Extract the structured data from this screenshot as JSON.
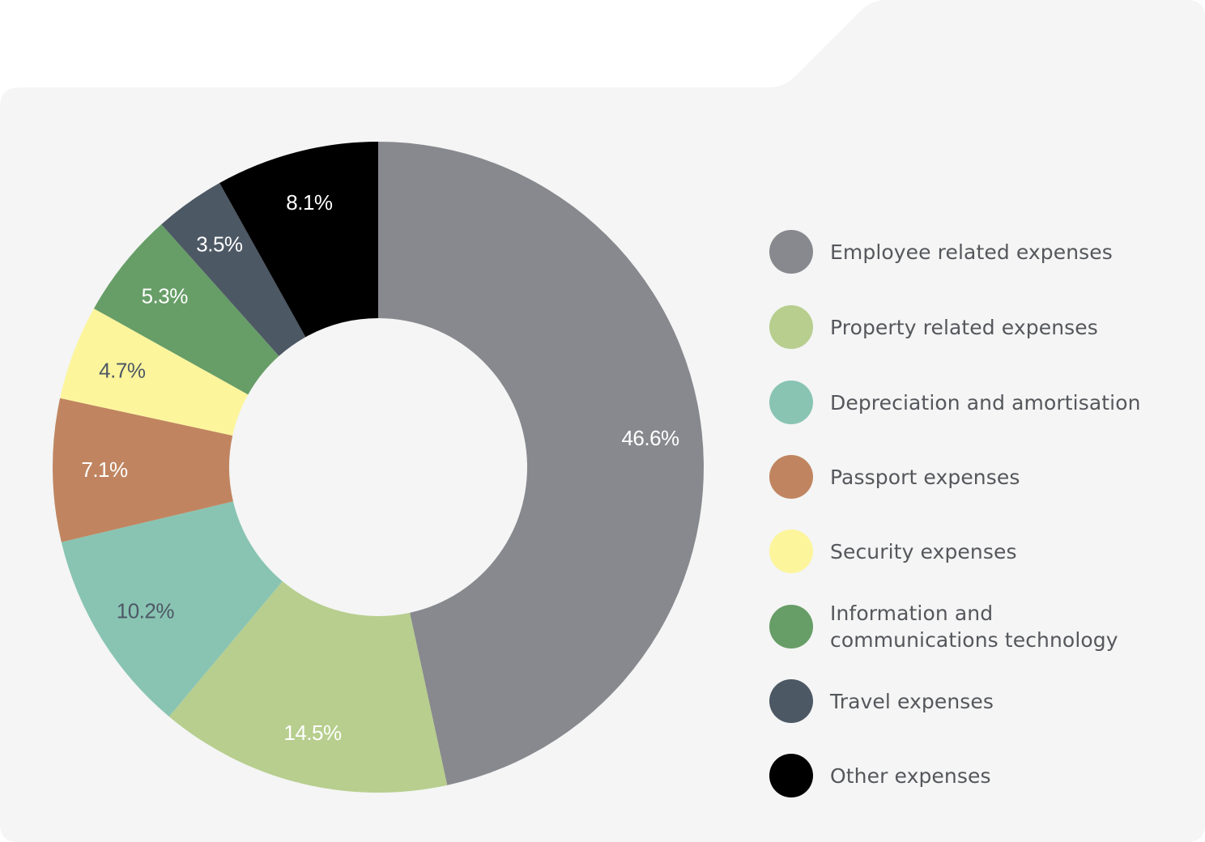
{
  "chart_data": {
    "type": "pie",
    "variant": "donut",
    "title": "",
    "categories": [
      "Employee related expenses",
      "Property related expenses",
      "Depreciation and amortisation",
      "Passport expenses",
      "Security expenses",
      "Information and communications technology",
      "Travel expenses",
      "Other expenses"
    ],
    "values": [
      46.6,
      14.5,
      10.2,
      7.1,
      4.7,
      5.3,
      3.5,
      8.1
    ],
    "value_labels": [
      "46.6%",
      "14.5%",
      "10.2%",
      "7.1%",
      "4.7%",
      "5.3%",
      "3.5%",
      "8.1%"
    ],
    "colors": [
      "#88898e",
      "#b7ce8e",
      "#89c4b3",
      "#c08560",
      "#fdf59c",
      "#679d67",
      "#4d5865",
      "#000000"
    ],
    "label_colors": [
      "#ffffff",
      "#ffffff",
      "#4d5865",
      "#ffffff",
      "#4d5865",
      "#ffffff",
      "#ffffff",
      "#ffffff"
    ],
    "legend_position": "right",
    "start_angle": "12 o'clock",
    "direction": "clockwise"
  },
  "background_color": "#f4f5f4"
}
